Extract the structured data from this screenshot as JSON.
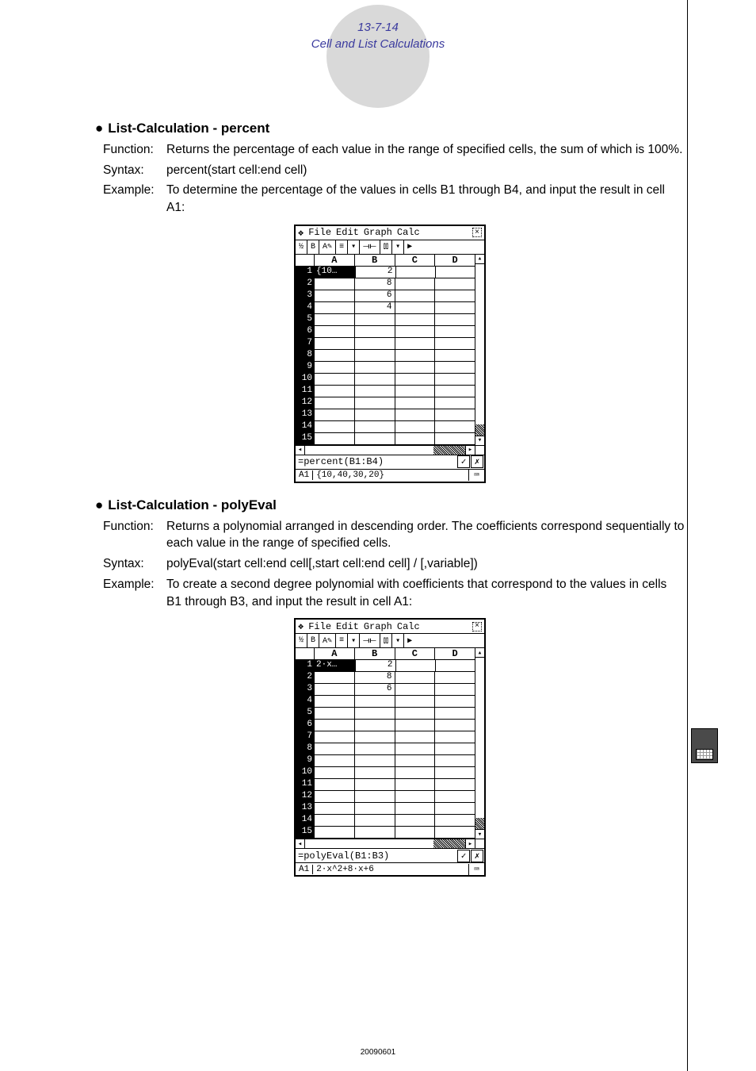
{
  "header": {
    "page_ref": "13-7-14",
    "chapter": "Cell and List Calculations"
  },
  "sections": [
    {
      "title": "List-Calculation - percent",
      "function": "Returns the percentage of each value in the range of specified cells, the sum of which is 100%.",
      "syntax": "percent(start cell:end cell)",
      "example": "To determine the percentage of the values in cells B1 through B4, and input the result in cell A1:",
      "screenshot": {
        "menu": [
          "File",
          "Edit",
          "Graph",
          "Calc"
        ],
        "toolbar_items": [
          "½",
          "B",
          "A✎",
          "≡",
          "▾",
          "⟞⟝",
          "⫾⫾",
          "▾",
          "▶"
        ],
        "columns": [
          "A",
          "B",
          "C",
          "D"
        ],
        "rows": [
          {
            "n": "1",
            "hilite": true,
            "A": "{10…",
            "B": "2"
          },
          {
            "n": "2",
            "B": "8"
          },
          {
            "n": "3",
            "B": "6"
          },
          {
            "n": "4",
            "B": "4"
          },
          {
            "n": "5"
          },
          {
            "n": "6"
          },
          {
            "n": "7"
          },
          {
            "n": "8"
          },
          {
            "n": "9"
          },
          {
            "n": "10"
          },
          {
            "n": "11"
          },
          {
            "n": "12"
          },
          {
            "n": "13"
          },
          {
            "n": "14"
          },
          {
            "n": "15"
          }
        ],
        "formula": "=percent(B1:B4)",
        "status_cell": "A1",
        "status_value": "{10,40,30,20}"
      }
    },
    {
      "title": "List-Calculation - polyEval",
      "function": "Returns a polynomial arranged in descending order. The coefficients correspond sequentially to each value in the range of specified cells.",
      "syntax": "polyEval(start cell:end cell[,start cell:end cell] / [,variable])",
      "example": "To create a second degree polynomial with coefficients that correspond to the values in cells B1 through B3, and input the result in cell A1:",
      "screenshot": {
        "menu": [
          "File",
          "Edit",
          "Graph",
          "Calc"
        ],
        "toolbar_items": [
          "½",
          "B",
          "A✎",
          "≡",
          "▾",
          "⟞⟝",
          "⫾⫾",
          "▾",
          "▶"
        ],
        "columns": [
          "A",
          "B",
          "C",
          "D"
        ],
        "rows": [
          {
            "n": "1",
            "hilite": true,
            "A": "2·x…",
            "B": "2"
          },
          {
            "n": "2",
            "B": "8"
          },
          {
            "n": "3",
            "B": "6"
          },
          {
            "n": "4"
          },
          {
            "n": "5"
          },
          {
            "n": "6"
          },
          {
            "n": "7"
          },
          {
            "n": "8"
          },
          {
            "n": "9"
          },
          {
            "n": "10"
          },
          {
            "n": "11"
          },
          {
            "n": "12"
          },
          {
            "n": "13"
          },
          {
            "n": "14"
          },
          {
            "n": "15"
          }
        ],
        "formula": "=polyEval(B1:B3)",
        "status_cell": "A1",
        "status_value": "2·x^2+8·x+6"
      }
    }
  ],
  "footer": "20090601",
  "labels": {
    "function": "Function:",
    "syntax": "Syntax:",
    "example": "Example:"
  },
  "colors": {
    "header_text": "#3a3a9e",
    "circle_bg": "#d9d9d9",
    "side_tab_bg": "#4a4a4a"
  }
}
